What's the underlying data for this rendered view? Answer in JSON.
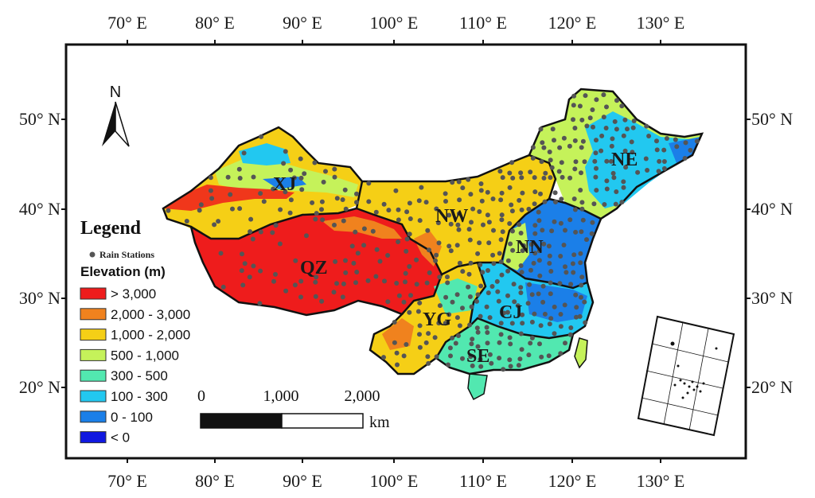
{
  "map": {
    "lon_labels": [
      "70° E",
      "80° E",
      "90° E",
      "100° E",
      "110° E",
      "120° E",
      "130° E"
    ],
    "lat_labels": [
      "50° N",
      "40° N",
      "30° N",
      "20° N"
    ],
    "north_arrow": "N",
    "regions": [
      "XJ",
      "NW",
      "NE",
      "QZ",
      "NN",
      "YG",
      "CJ",
      "SE"
    ]
  },
  "legend": {
    "title": "Legend",
    "stations_label": "Rain Stations",
    "elevation_title": "Elevation (m)",
    "classes": [
      {
        "label": "> 3,000",
        "color": "#ee1c1c"
      },
      {
        "label": "2,000 - 3,000",
        "color": "#f0821e"
      },
      {
        "label": "1,000 - 2,000",
        "color": "#f5cf16"
      },
      {
        "label": "500 - 1,000",
        "color": "#c5f25a"
      },
      {
        "label": "300 - 500",
        "color": "#52e8b0"
      },
      {
        "label": "100 - 300",
        "color": "#22c8f0"
      },
      {
        "label": "0 - 100",
        "color": "#1b7fe8"
      },
      {
        "label": "<  0",
        "color": "#1018e0"
      }
    ]
  },
  "scale": {
    "labels": [
      "0",
      "1,000",
      "2,000"
    ],
    "unit": "km"
  },
  "colors": {
    "station": "#555555",
    "border": "#111111"
  }
}
